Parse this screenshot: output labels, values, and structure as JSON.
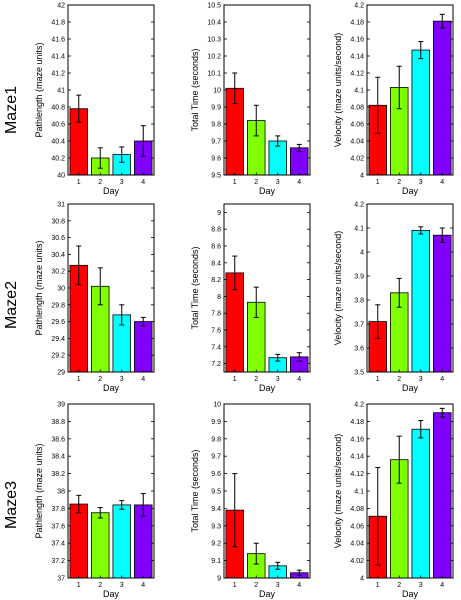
{
  "rows": [
    "Maze1",
    "Maze2",
    "Maze3"
  ],
  "colors": [
    "#ff0000",
    "#7fff00",
    "#00ffff",
    "#7f00ff"
  ],
  "chart_data": [
    {
      "type": "bar",
      "row": 0,
      "col": 0,
      "ylabel": "Pathlength (maze units)",
      "xlabel": "Day",
      "categories": [
        "1",
        "2",
        "3",
        "4"
      ],
      "values": [
        40.78,
        40.2,
        40.24,
        40.4
      ],
      "errors": [
        0.16,
        0.12,
        0.09,
        0.18
      ],
      "ylim": [
        40,
        42
      ],
      "yticks": [
        40,
        40.2,
        40.4,
        40.6,
        40.8,
        41,
        41.2,
        41.4,
        41.6,
        41.8,
        42
      ],
      "ytick_labels": [
        "40",
        "40.2",
        "40.4",
        "40.6",
        "40.8",
        "41",
        "41.2",
        "41.4",
        "41.6",
        "41.8",
        "42"
      ]
    },
    {
      "type": "bar",
      "row": 0,
      "col": 1,
      "ylabel": "Total Time (seconds)",
      "xlabel": "Day",
      "categories": [
        "1",
        "2",
        "3",
        "4"
      ],
      "values": [
        10.01,
        9.82,
        9.7,
        9.66
      ],
      "errors": [
        0.09,
        0.09,
        0.03,
        0.02
      ],
      "ylim": [
        9.5,
        10.5
      ],
      "yticks": [
        9.5,
        9.6,
        9.7,
        9.8,
        9.9,
        10,
        10.1,
        10.2,
        10.3,
        10.4,
        10.5
      ],
      "ytick_labels": [
        "9.5",
        "9.6",
        "9.7",
        "9.8",
        "9.9",
        "10",
        "10.1",
        "10.2",
        "10.3",
        "10.4",
        "10.5"
      ]
    },
    {
      "type": "bar",
      "row": 0,
      "col": 2,
      "ylabel": "Velocity (maze units/second)",
      "xlabel": "Day",
      "categories": [
        "1",
        "2",
        "3",
        "4"
      ],
      "values": [
        4.082,
        4.103,
        4.147,
        4.181
      ],
      "errors": [
        0.033,
        0.025,
        0.01,
        0.008
      ],
      "ylim": [
        4,
        4.2
      ],
      "yticks": [
        4,
        4.02,
        4.04,
        4.06,
        4.08,
        4.1,
        4.12,
        4.14,
        4.16,
        4.18,
        4.2
      ],
      "ytick_labels": [
        "4",
        "4.02",
        "4.04",
        "4.06",
        "4.08",
        "4.1",
        "4.12",
        "4.14",
        "4.16",
        "4.18",
        "4.2"
      ]
    },
    {
      "type": "bar",
      "row": 1,
      "col": 0,
      "ylabel": "Pathlength (maze units)",
      "xlabel": "Day",
      "categories": [
        "1",
        "2",
        "3",
        "4"
      ],
      "values": [
        30.27,
        30.02,
        29.68,
        29.6
      ],
      "errors": [
        0.23,
        0.22,
        0.12,
        0.05
      ],
      "ylim": [
        29,
        31
      ],
      "yticks": [
        29,
        29.2,
        29.4,
        29.6,
        29.8,
        30,
        30.2,
        30.4,
        30.6,
        30.8,
        31
      ],
      "ytick_labels": [
        "29",
        "29.2",
        "29.4",
        "29.6",
        "29.8",
        "30",
        "30.2",
        "30.4",
        "30.6",
        "30.8",
        "31"
      ]
    },
    {
      "type": "bar",
      "row": 1,
      "col": 1,
      "ylabel": "Total Time (seconds)",
      "xlabel": "Day",
      "categories": [
        "1",
        "2",
        "3",
        "4"
      ],
      "values": [
        8.28,
        7.93,
        7.27,
        7.28
      ],
      "errors": [
        0.2,
        0.18,
        0.04,
        0.05
      ],
      "ylim": [
        7.1,
        9.1
      ],
      "yticks": [
        7.2,
        7.4,
        7.6,
        7.8,
        8,
        8.2,
        8.4,
        8.6,
        8.8,
        9
      ],
      "ytick_labels": [
        "7.2",
        "7.4",
        "7.6",
        "7.8",
        "8",
        "8.2",
        "8.4",
        "8.6",
        "8.8",
        "9"
      ]
    },
    {
      "type": "bar",
      "row": 1,
      "col": 2,
      "ylabel": "Velocity (maze units/second)",
      "xlabel": "Day",
      "categories": [
        "1",
        "2",
        "3",
        "4"
      ],
      "values": [
        3.71,
        3.83,
        4.09,
        4.07
      ],
      "errors": [
        0.07,
        0.06,
        0.015,
        0.03
      ],
      "ylim": [
        3.5,
        4.2
      ],
      "yticks": [
        3.5,
        3.6,
        3.7,
        3.8,
        3.9,
        4,
        4.1,
        4.2
      ],
      "ytick_labels": [
        "3.5",
        "3.6",
        "3.7",
        "3.8",
        "3.9",
        "4",
        "4.1",
        "4.2"
      ]
    },
    {
      "type": "bar",
      "row": 2,
      "col": 0,
      "ylabel": "Pathlength (maze units)",
      "xlabel": "Day",
      "categories": [
        "1",
        "2",
        "3",
        "4"
      ],
      "values": [
        37.85,
        37.75,
        37.84,
        37.84
      ],
      "errors": [
        0.1,
        0.06,
        0.05,
        0.13
      ],
      "ylim": [
        37,
        39
      ],
      "yticks": [
        37,
        37.2,
        37.4,
        37.6,
        37.8,
        38,
        38.2,
        38.4,
        38.6,
        38.8,
        39
      ],
      "ytick_labels": [
        "37",
        "37.2",
        "37.4",
        "37.6",
        "37.8",
        "38",
        "38.2",
        "38.4",
        "38.6",
        "38.8",
        "39"
      ]
    },
    {
      "type": "bar",
      "row": 2,
      "col": 1,
      "ylabel": "Total Time (seconds)",
      "xlabel": "Day",
      "categories": [
        "1",
        "2",
        "3",
        "4"
      ],
      "values": [
        9.39,
        9.14,
        9.07,
        9.03
      ],
      "errors": [
        0.21,
        0.06,
        0.02,
        0.015
      ],
      "ylim": [
        9,
        10
      ],
      "yticks": [
        9,
        9.1,
        9.2,
        9.3,
        9.4,
        9.5,
        9.6,
        9.7,
        9.8,
        9.9,
        10
      ],
      "ytick_labels": [
        "9",
        "9.1",
        "9.2",
        "9.3",
        "9.4",
        "9.5",
        "9.6",
        "9.7",
        "9.8",
        "9.9",
        "10"
      ]
    },
    {
      "type": "bar",
      "row": 2,
      "col": 2,
      "ylabel": "Velocity (maze units/second)",
      "xlabel": "Day",
      "categories": [
        "1",
        "2",
        "3",
        "4"
      ],
      "values": [
        4.071,
        4.136,
        4.171,
        4.19
      ],
      "errors": [
        0.056,
        0.027,
        0.01,
        0.005
      ],
      "ylim": [
        4,
        4.2
      ],
      "yticks": [
        4,
        4.02,
        4.04,
        4.06,
        4.08,
        4.1,
        4.12,
        4.14,
        4.16,
        4.18,
        4.2
      ],
      "ytick_labels": [
        "4",
        "4.02",
        "4.04",
        "4.06",
        "4.08",
        "4.1",
        "4.12",
        "4.14",
        "4.16",
        "4.18",
        "4.2"
      ]
    }
  ]
}
